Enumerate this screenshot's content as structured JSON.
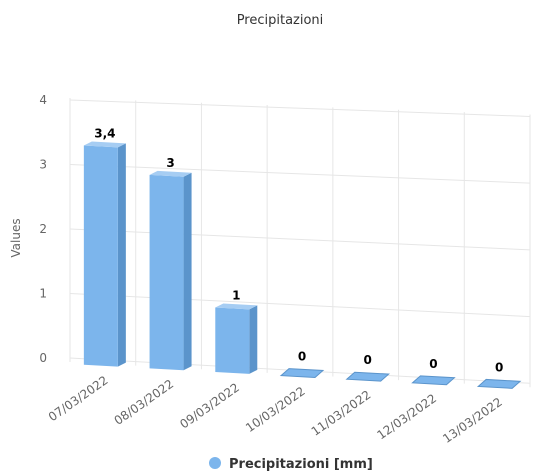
{
  "chart_data": {
    "type": "bar",
    "title": "Precipitazioni",
    "ylabel": "Values",
    "categories": [
      "07/03/2022",
      "08/03/2022",
      "09/03/2022",
      "10/03/2022",
      "11/03/2022",
      "12/03/2022",
      "13/03/2022"
    ],
    "series": [
      {
        "name": "Precipitazioni [mm]",
        "values": [
          3.4,
          3,
          1,
          0,
          0,
          0,
          0
        ],
        "labels": [
          "3,4",
          "3",
          "1",
          "0",
          "0",
          "0",
          "0"
        ]
      }
    ],
    "ylim": [
      0,
      4
    ],
    "yticks": [
      "0",
      "1",
      "2",
      "3",
      "4"
    ],
    "grid": true,
    "legend": "bottom",
    "style": "3d",
    "colors": {
      "bar": "#7cb5ec",
      "bar_dark": "#5b94cb",
      "bar_light": "#a6cdf3",
      "grid": "#e6e6e6"
    }
  }
}
